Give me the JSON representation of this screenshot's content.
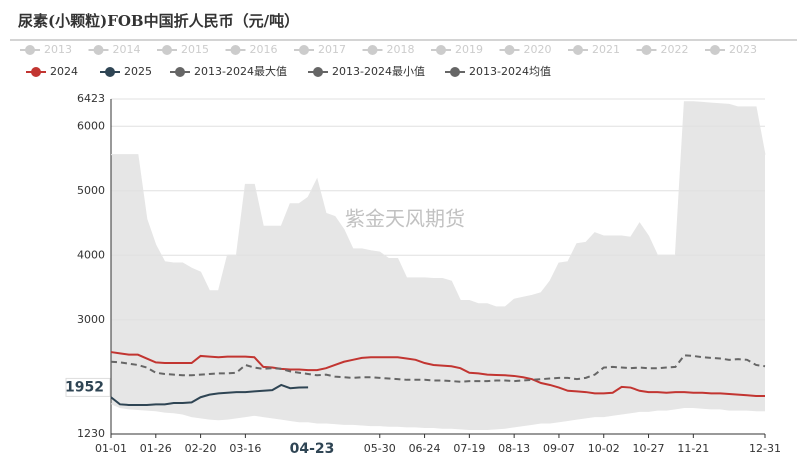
{
  "chart_data": {
    "type": "line",
    "title": "尿素(小颗粒)FOB中国折人民币（元/吨）",
    "watermark": "紫金天风期货",
    "legend_inactive": [
      "2013",
      "2014",
      "2015",
      "2016",
      "2017",
      "2018",
      "2019",
      "2020",
      "2021",
      "2022",
      "2023"
    ],
    "inactive_color": "#cccccc",
    "categories": [
      "01-01",
      null,
      null,
      null,
      null,
      "01-26",
      null,
      null,
      null,
      null,
      "02-20",
      null,
      null,
      null,
      null,
      "03-16",
      null,
      null,
      null,
      null,
      null,
      null,
      null,
      null,
      null,
      null,
      null,
      null,
      null,
      null,
      "05-30",
      null,
      null,
      null,
      null,
      "06-24",
      null,
      null,
      null,
      null,
      "07-19",
      null,
      null,
      null,
      null,
      "08-13",
      null,
      null,
      null,
      null,
      "09-07",
      null,
      null,
      null,
      null,
      "10-02",
      null,
      null,
      null,
      null,
      "10-27",
      null,
      null,
      null,
      null,
      "11-21",
      null,
      null,
      null,
      null,
      null,
      null,
      null,
      "12-31"
    ],
    "series": [
      {
        "name": "2024",
        "color": "#c23531",
        "style": "solid",
        "values": [
          2500,
          2480,
          2460,
          2460,
          2400,
          2340,
          2330,
          2330,
          2330,
          2330,
          2440,
          2430,
          2420,
          2430,
          2430,
          2430,
          2420,
          2270,
          2260,
          2240,
          2230,
          2230,
          2220,
          2220,
          2250,
          2300,
          2350,
          2380,
          2410,
          2420,
          2420,
          2420,
          2420,
          2400,
          2380,
          2330,
          2300,
          2290,
          2280,
          2250,
          2180,
          2170,
          2150,
          2145,
          2140,
          2130,
          2110,
          2080,
          2020,
          1990,
          1950,
          1900,
          1890,
          1880,
          1860,
          1860,
          1870,
          1960,
          1950,
          1900,
          1880,
          1880,
          1870,
          1880,
          1880,
          1870,
          1870,
          1860,
          1860,
          1850,
          1840,
          1830,
          1820,
          1820
        ]
      },
      {
        "name": "2025",
        "color": "#2f4554",
        "style": "solid",
        "values": [
          1800,
          1690,
          1680,
          1680,
          1680,
          1690,
          1690,
          1710,
          1710,
          1720,
          1800,
          1840,
          1860,
          1870,
          1880,
          1880,
          1890,
          1900,
          1910,
          1990,
          1940,
          1950,
          1952,
          null,
          null,
          null,
          null,
          null,
          null,
          null,
          null,
          null,
          null,
          null,
          null,
          null,
          null,
          null,
          null,
          null,
          null,
          null,
          null,
          null,
          null,
          null,
          null,
          null,
          null,
          null,
          null,
          null,
          null,
          null,
          null,
          null,
          null,
          null,
          null,
          null,
          null,
          null,
          null,
          null,
          null,
          null,
          null,
          null,
          null,
          null,
          null,
          null,
          null,
          null
        ]
      },
      {
        "name": "2013-2024最大值",
        "color": "#666666",
        "style": "band-top",
        "values": [
          5560,
          5560,
          5560,
          5560,
          4560,
          4160,
          3900,
          3880,
          3880,
          3800,
          3740,
          3450,
          3450,
          4000,
          4000,
          5100,
          5100,
          4450,
          4450,
          4450,
          4800,
          4800,
          4900,
          5180,
          4650,
          4600,
          4400,
          4100,
          4100,
          4070,
          4050,
          3950,
          3950,
          3650,
          3650,
          3650,
          3640,
          3640,
          3600,
          3300,
          3300,
          3250,
          3250,
          3200,
          3200,
          3320,
          3350,
          3380,
          3420,
          3600,
          3880,
          3900,
          4180,
          4200,
          4350,
          4300,
          4300,
          4300,
          4280,
          4500,
          4300,
          4000,
          4000,
          4000,
          6380,
          6380,
          6370,
          6360,
          6350,
          6340,
          6300,
          6300,
          6300,
          5560
        ]
      },
      {
        "name": "2013-2024最小值",
        "color": "#666666",
        "style": "band-bottom",
        "values": [
          1700,
          1640,
          1620,
          1610,
          1600,
          1590,
          1570,
          1560,
          1540,
          1500,
          1480,
          1460,
          1450,
          1460,
          1480,
          1500,
          1520,
          1500,
          1480,
          1460,
          1440,
          1420,
          1420,
          1400,
          1400,
          1390,
          1380,
          1380,
          1370,
          1360,
          1360,
          1350,
          1350,
          1340,
          1340,
          1330,
          1330,
          1320,
          1320,
          1310,
          1300,
          1300,
          1300,
          1310,
          1320,
          1340,
          1360,
          1380,
          1400,
          1400,
          1420,
          1440,
          1460,
          1480,
          1500,
          1500,
          1520,
          1540,
          1560,
          1580,
          1580,
          1600,
          1600,
          1620,
          1640,
          1640,
          1630,
          1620,
          1620,
          1600,
          1600,
          1600,
          1590,
          1590
        ]
      },
      {
        "name": "2013-2024均值",
        "color": "#666666",
        "style": "dashed",
        "values": [
          2350,
          2340,
          2320,
          2300,
          2260,
          2180,
          2160,
          2150,
          2140,
          2140,
          2150,
          2160,
          2170,
          2170,
          2180,
          2300,
          2260,
          2240,
          2250,
          2240,
          2200,
          2180,
          2160,
          2140,
          2150,
          2120,
          2110,
          2100,
          2110,
          2110,
          2100,
          2090,
          2080,
          2070,
          2070,
          2070,
          2060,
          2060,
          2050,
          2040,
          2050,
          2050,
          2050,
          2060,
          2060,
          2050,
          2060,
          2070,
          2080,
          2090,
          2100,
          2100,
          2080,
          2100,
          2150,
          2260,
          2270,
          2260,
          2250,
          2260,
          2250,
          2250,
          2260,
          2270,
          2450,
          2440,
          2420,
          2410,
          2400,
          2380,
          2390,
          2380,
          2300,
          2280
        ]
      }
    ],
    "band_color": "#e6e6e6",
    "ylim": [
      1230,
      6423
    ],
    "yticks": [
      1230,
      3000,
      4000,
      5000,
      6000,
      6423
    ],
    "grid": true,
    "crosshair": {
      "x": "04-23",
      "y": 1952
    }
  }
}
